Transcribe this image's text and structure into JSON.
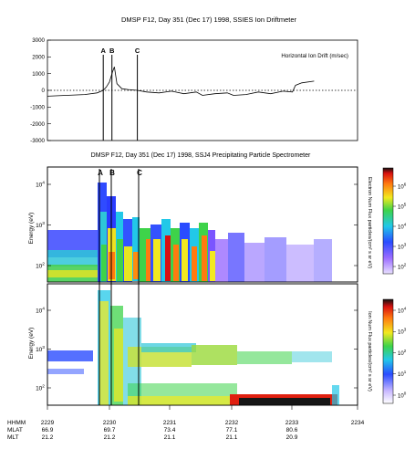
{
  "chart_data": [
    {
      "type": "line",
      "title": "DMSP F12, Day 351 (Dec 17) 1998, SSIES Ion Driftmeter",
      "legend": "Horizontal Ion Drift (m/sec)",
      "yticks": [
        "3000",
        "2000",
        "1000",
        "0",
        "-1000",
        "-2000",
        "-3000"
      ],
      "ylim": [
        -3000,
        3000
      ],
      "xlim": [
        2229,
        2234
      ],
      "markers": [
        {
          "label": "A",
          "x": 2229.9
        },
        {
          "label": "B",
          "x": 2230.04
        },
        {
          "label": "C",
          "x": 2230.45
        }
      ],
      "series": [
        {
          "x": [
            2229.0,
            2229.3,
            2229.6,
            2229.8,
            2229.9,
            2229.95,
            2230.0,
            2230.05,
            2230.08,
            2230.12,
            2230.2,
            2230.3,
            2230.45,
            2230.6,
            2230.8,
            2231.0,
            2231.2,
            2231.4,
            2231.5,
            2231.7,
            2231.9,
            2232.0,
            2232.2,
            2232.4,
            2232.6,
            2232.8,
            2232.95,
            2233.0,
            2233.1,
            2233.3
          ],
          "y": [
            -350,
            -300,
            -250,
            -150,
            0,
            200,
            500,
            1100,
            1400,
            400,
            100,
            50,
            0,
            -100,
            -150,
            -50,
            -200,
            -100,
            -300,
            -200,
            -150,
            -300,
            -250,
            -100,
            -200,
            -50,
            -100,
            300,
            450,
            550
          ]
        }
      ]
    },
    {
      "type": "heatmap",
      "title": "DMSP F12, Day 351 (Dec 17) 1998, SSJ4 Precipitating Particle Spectrometer",
      "panels": [
        {
          "name": "electrons",
          "ylabel": "Energy (eV)",
          "yticks": [
            "10^4",
            "10^3",
            "10^2"
          ],
          "colorbar_label": "Electron Num Flux particles/(cm² s sr eV)",
          "colorbar_ticks": [
            "10^6",
            "10^5",
            "10^4",
            "10^3",
            "10^2"
          ]
        },
        {
          "name": "ions",
          "ylabel": "Energy (eV)",
          "yticks": [
            "10^4",
            "10^3",
            "10^2"
          ],
          "colorbar_label": "Ion Num Flux particles/(cm² s sr eV)",
          "colorbar_ticks": [
            "10^4",
            "10^3",
            "10^2",
            "10^1",
            "10^0"
          ]
        }
      ],
      "markers": [
        "A",
        "B",
        "C"
      ],
      "axis_rows": [
        {
          "label": "HHMM",
          "values": [
            "2229",
            "2230",
            "2231",
            "2232",
            "2233",
            "2234"
          ]
        },
        {
          "label": "MLAT",
          "values": [
            "66.9",
            "69.7",
            "73.4",
            "77.1",
            "80.6"
          ]
        },
        {
          "label": "MLT",
          "values": [
            "21.2",
            "21.2",
            "21.1",
            "21.1",
            "20.9"
          ]
        }
      ]
    }
  ]
}
